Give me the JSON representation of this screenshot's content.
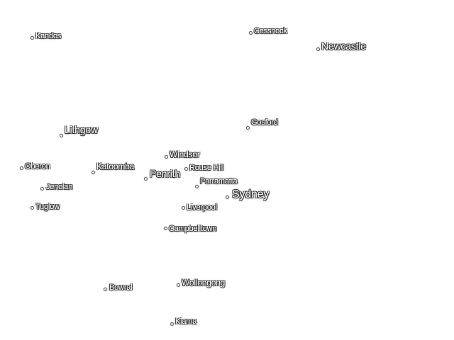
{
  "map": {
    "colors": {
      "background": "#ffffff",
      "label_text": "#ffffff",
      "label_halo": "#3a3a3a"
    },
    "places": [
      {
        "id": "kandos",
        "name": "Kandos",
        "size": "s"
      },
      {
        "id": "cessnock",
        "name": "Cessnock",
        "size": "s"
      },
      {
        "id": "newcastle",
        "name": "Newcastle",
        "size": "l"
      },
      {
        "id": "lithgow",
        "name": "Lithgow",
        "size": "l"
      },
      {
        "id": "gosford",
        "name": "Gosford",
        "size": "s"
      },
      {
        "id": "windsor",
        "name": "Windsor",
        "size": "m"
      },
      {
        "id": "oberon",
        "name": "Oberon",
        "size": "s"
      },
      {
        "id": "katoomba",
        "name": "Katoomba",
        "size": "m"
      },
      {
        "id": "penrith",
        "name": "Penrith",
        "size": "l"
      },
      {
        "id": "rouse-hill",
        "name": "Rouse Hill",
        "size": "s"
      },
      {
        "id": "parramatta",
        "name": "Parramatta",
        "size": "s"
      },
      {
        "id": "jenolan",
        "name": "Jenolan",
        "size": "s"
      },
      {
        "id": "sydney",
        "name": "Sydney",
        "size": "xl"
      },
      {
        "id": "tuglow",
        "name": "Tuglow",
        "size": "s"
      },
      {
        "id": "liverpool",
        "name": "Liverpool",
        "size": "s"
      },
      {
        "id": "campbelltown",
        "name": "Campbelltown",
        "size": "s"
      },
      {
        "id": "wollongong",
        "name": "Wollongong",
        "size": "m"
      },
      {
        "id": "bowral",
        "name": "Bowral",
        "size": "s"
      },
      {
        "id": "kiama",
        "name": "Kiama",
        "size": "s"
      }
    ]
  }
}
